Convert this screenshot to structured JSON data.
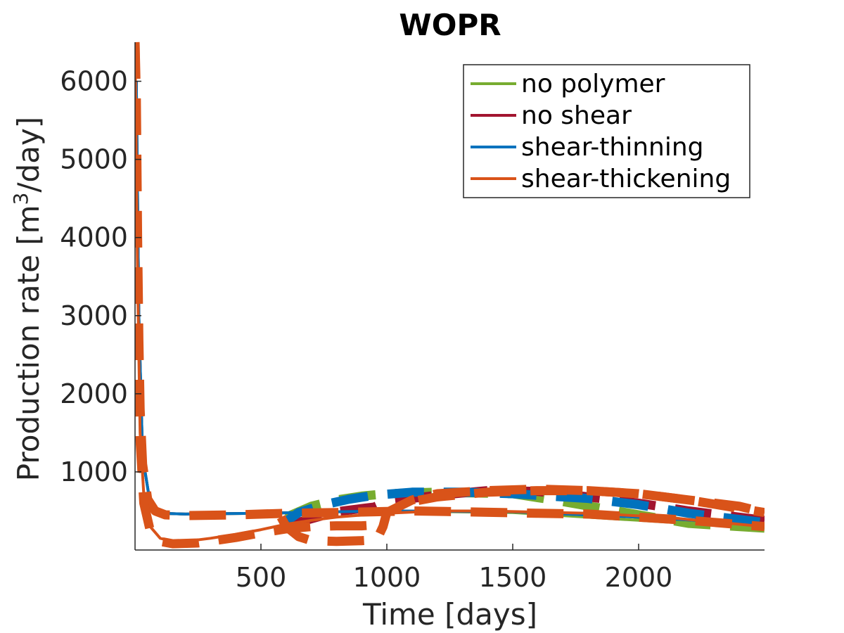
{
  "chart_data": {
    "type": "line",
    "title": "WOPR",
    "xlabel": "Time [days]",
    "ylabel_prefix": "Production rate [m",
    "ylabel_sup": "3",
    "ylabel_suffix": "/day]",
    "xlim": [
      0,
      2500
    ],
    "ylim": [
      0,
      6500
    ],
    "xticks": [
      500,
      1000,
      1500,
      2000
    ],
    "yticks": [
      1000,
      2000,
      3000,
      4000,
      5000,
      6000
    ],
    "legend_position": "top-right",
    "series": [
      {
        "name": "no polymer",
        "color": "#77AC30",
        "lines": [
          {
            "style": "solid",
            "points": [
              [
                5,
                6000
              ],
              [
                15,
                3000
              ],
              [
                30,
                1200
              ],
              [
                60,
                600
              ],
              [
                100,
                470
              ],
              [
                200,
                460
              ],
              [
                500,
                470
              ],
              [
                800,
                490
              ],
              [
                1000,
                500
              ],
              [
                1500,
                480
              ],
              [
                2000,
                380
              ],
              [
                2500,
                280
              ]
            ]
          },
          {
            "style": "dashed",
            "points": [
              [
                600,
                420
              ],
              [
                700,
                560
              ],
              [
                800,
                640
              ],
              [
                900,
                690
              ],
              [
                1000,
                720
              ],
              [
                1200,
                740
              ],
              [
                1500,
                720
              ],
              [
                1700,
                620
              ],
              [
                2000,
                450
              ],
              [
                2200,
                340
              ],
              [
                2500,
                280
              ]
            ]
          }
        ]
      },
      {
        "name": "no shear",
        "color": "#A2142F",
        "lines": [
          {
            "style": "solid",
            "points": [
              [
                5,
                6000
              ],
              [
                15,
                3000
              ],
              [
                30,
                1200
              ],
              [
                60,
                600
              ],
              [
                100,
                470
              ],
              [
                200,
                460
              ],
              [
                500,
                470
              ],
              [
                800,
                490
              ],
              [
                1000,
                500
              ],
              [
                1500,
                490
              ],
              [
                2000,
                420
              ],
              [
                2500,
                330
              ]
            ]
          },
          {
            "style": "dashed",
            "points": [
              [
                600,
                310
              ],
              [
                700,
                400
              ],
              [
                800,
                490
              ],
              [
                900,
                530
              ],
              [
                950,
                550
              ],
              [
                1000,
                620
              ],
              [
                1200,
                700
              ],
              [
                1400,
                760
              ],
              [
                1600,
                750
              ],
              [
                1800,
                680
              ],
              [
                2000,
                600
              ],
              [
                2200,
                500
              ],
              [
                2500,
                380
              ]
            ]
          }
        ]
      },
      {
        "name": "shear-thinning",
        "color": "#0072BD",
        "lines": [
          {
            "style": "solid",
            "points": [
              [
                5,
                6000
              ],
              [
                15,
                3000
              ],
              [
                30,
                1200
              ],
              [
                60,
                600
              ],
              [
                100,
                470
              ],
              [
                200,
                460
              ],
              [
                500,
                470
              ],
              [
                800,
                490
              ],
              [
                1000,
                500
              ],
              [
                1500,
                490
              ],
              [
                2000,
                420
              ],
              [
                2500,
                330
              ]
            ]
          },
          {
            "style": "dashed",
            "points": [
              [
                580,
                320
              ],
              [
                650,
                480
              ],
              [
                750,
                580
              ],
              [
                850,
                650
              ],
              [
                950,
                700
              ],
              [
                1100,
                740
              ],
              [
                1300,
                740
              ],
              [
                1500,
                720
              ],
              [
                1800,
                660
              ],
              [
                2000,
                580
              ],
              [
                2200,
                470
              ],
              [
                2500,
                350
              ]
            ]
          }
        ]
      },
      {
        "name": "shear-thickening",
        "color": "#D95319",
        "lines": [
          {
            "style": "dashed",
            "points": [
              [
                0,
                6500
              ],
              [
                5,
                5800
              ],
              [
                10,
                4000
              ],
              [
                15,
                2700
              ],
              [
                20,
                1800
              ],
              [
                30,
                1100
              ],
              [
                50,
                650
              ],
              [
                80,
                500
              ],
              [
                120,
                450
              ],
              [
                200,
                440
              ],
              [
                400,
                450
              ],
              [
                600,
                470
              ],
              [
                800,
                480
              ],
              [
                950,
                490
              ],
              [
                1100,
                500
              ],
              [
                1300,
                490
              ],
              [
                1600,
                470
              ],
              [
                1800,
                460
              ],
              [
                2000,
                420
              ],
              [
                2200,
                380
              ],
              [
                2500,
                300
              ]
            ]
          },
          {
            "style": "solid",
            "points": [
              [
                0,
                6500
              ],
              [
                10,
                3500
              ],
              [
                20,
                1500
              ],
              [
                35,
                700
              ],
              [
                60,
                300
              ],
              [
                100,
                150
              ],
              [
                150,
                110
              ],
              [
                200,
                110
              ],
              [
                300,
                150
              ],
              [
                400,
                200
              ],
              [
                500,
                260
              ],
              [
                600,
                330
              ],
              [
                700,
                380
              ],
              [
                800,
                420
              ],
              [
                950,
                460
              ],
              [
                1000,
                470
              ],
              [
                1200,
                500
              ],
              [
                1400,
                500
              ],
              [
                1800,
                470
              ],
              [
                2100,
                420
              ],
              [
                2500,
                300
              ]
            ]
          },
          {
            "style": "dashed",
            "points": [
              [
                0,
                6500
              ],
              [
                10,
                3200
              ],
              [
                20,
                1400
              ],
              [
                35,
                600
              ],
              [
                60,
                250
              ],
              [
                100,
                110
              ],
              [
                150,
                80
              ],
              [
                250,
                90
              ],
              [
                400,
                160
              ],
              [
                500,
                220
              ],
              [
                600,
                270
              ],
              [
                700,
                300
              ],
              [
                800,
                310
              ],
              [
                900,
                310
              ],
              [
                950,
                320
              ],
              [
                975,
                400
              ],
              [
                1000,
                480
              ],
              [
                1100,
                640
              ],
              [
                1200,
                720
              ],
              [
                1400,
                760
              ],
              [
                1600,
                780
              ],
              [
                1800,
                760
              ],
              [
                2000,
                720
              ],
              [
                2200,
                640
              ],
              [
                2400,
                560
              ],
              [
                2500,
                480
              ]
            ]
          },
          {
            "style": "dashed",
            "points": [
              [
                580,
                420
              ],
              [
                600,
                300
              ],
              [
                650,
                170
              ],
              [
                700,
                120
              ],
              [
                800,
                110
              ],
              [
                900,
                120
              ],
              [
                960,
                130
              ],
              [
                985,
                300
              ],
              [
                1000,
                480
              ],
              [
                1100,
                620
              ],
              [
                1200,
                680
              ],
              [
                1400,
                740
              ],
              [
                1600,
                760
              ],
              [
                1800,
                760
              ],
              [
                2000,
                720
              ],
              [
                2200,
                640
              ],
              [
                2500,
                480
              ]
            ]
          }
        ]
      }
    ]
  }
}
